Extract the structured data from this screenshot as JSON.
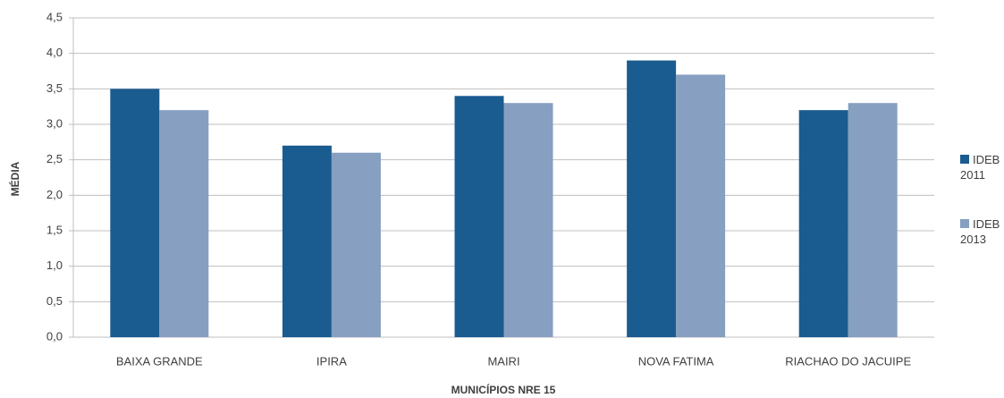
{
  "chart_data": {
    "type": "bar",
    "x_label": "MUNICÍPIOS  NRE 15",
    "y_label": "MÉDIA",
    "categories": [
      "BAIXA GRANDE",
      "IPIRA",
      "MAIRI",
      "NOVA FATIMA",
      "RIACHAO DO JACUIPE"
    ],
    "series": [
      {
        "name": "IDEB 2011",
        "color": "#1b5c90",
        "values": [
          3.5,
          2.7,
          3.4,
          3.9,
          3.2
        ]
      },
      {
        "name": "IDEB 2013",
        "color": "#879fc0",
        "values": [
          3.2,
          2.6,
          3.3,
          3.7,
          3.3
        ]
      }
    ],
    "ylim": [
      0,
      4.5
    ],
    "yticks": [
      {
        "value": 0,
        "label": "0,0"
      },
      {
        "value": 0.5,
        "label": "0,5"
      },
      {
        "value": 1,
        "label": "1,0"
      },
      {
        "value": 1.5,
        "label": "1,5"
      },
      {
        "value": 2,
        "label": "2,0"
      },
      {
        "value": 2.5,
        "label": "2,5"
      },
      {
        "value": 3,
        "label": "3,0"
      },
      {
        "value": 3.5,
        "label": "3,5"
      },
      {
        "value": 4,
        "label": "4,0"
      },
      {
        "value": 4.5,
        "label": "4,5"
      }
    ],
    "grid": true,
    "legend": "right"
  }
}
